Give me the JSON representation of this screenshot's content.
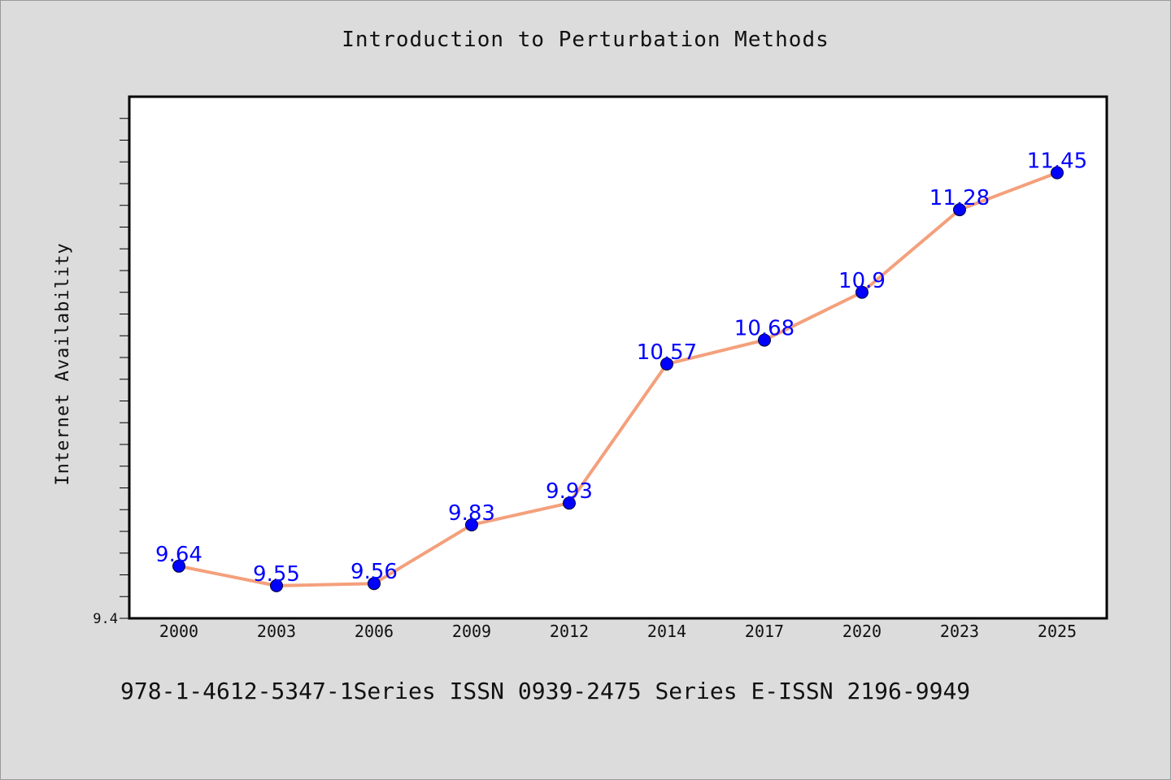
{
  "chart_data": {
    "type": "line",
    "title": "Introduction to Perturbation Methods",
    "xlabel": "",
    "ylabel": "Internet Availability",
    "categories": [
      "2000",
      "2003",
      "2006",
      "2009",
      "2012",
      "2014",
      "2017",
      "2020",
      "2023",
      "2025"
    ],
    "series": [
      {
        "values": [
          9.64,
          9.55,
          9.56,
          9.83,
          9.93,
          10.57,
          10.68,
          10.9,
          11.28,
          11.45
        ],
        "data_labels": [
          "9.64",
          "9.55",
          "9.56",
          "9.83",
          "9.93",
          "10.57",
          "10.68",
          "10.9",
          "11.28",
          "11.45"
        ]
      }
    ],
    "ylim": [
      9.4,
      11.8
    ],
    "ytick_labels": [
      "9.4"
    ],
    "grid": false,
    "colors": {
      "line": "#f4a07c",
      "marker": "#0000ff",
      "data_label": "#0000ff",
      "plot_background": "#ffffff",
      "page_background": "#dcdcdc"
    }
  },
  "footer": {
    "text": "978-1-4612-5347-1Series ISSN 0939-2475 Series E-ISSN 2196-9949"
  }
}
